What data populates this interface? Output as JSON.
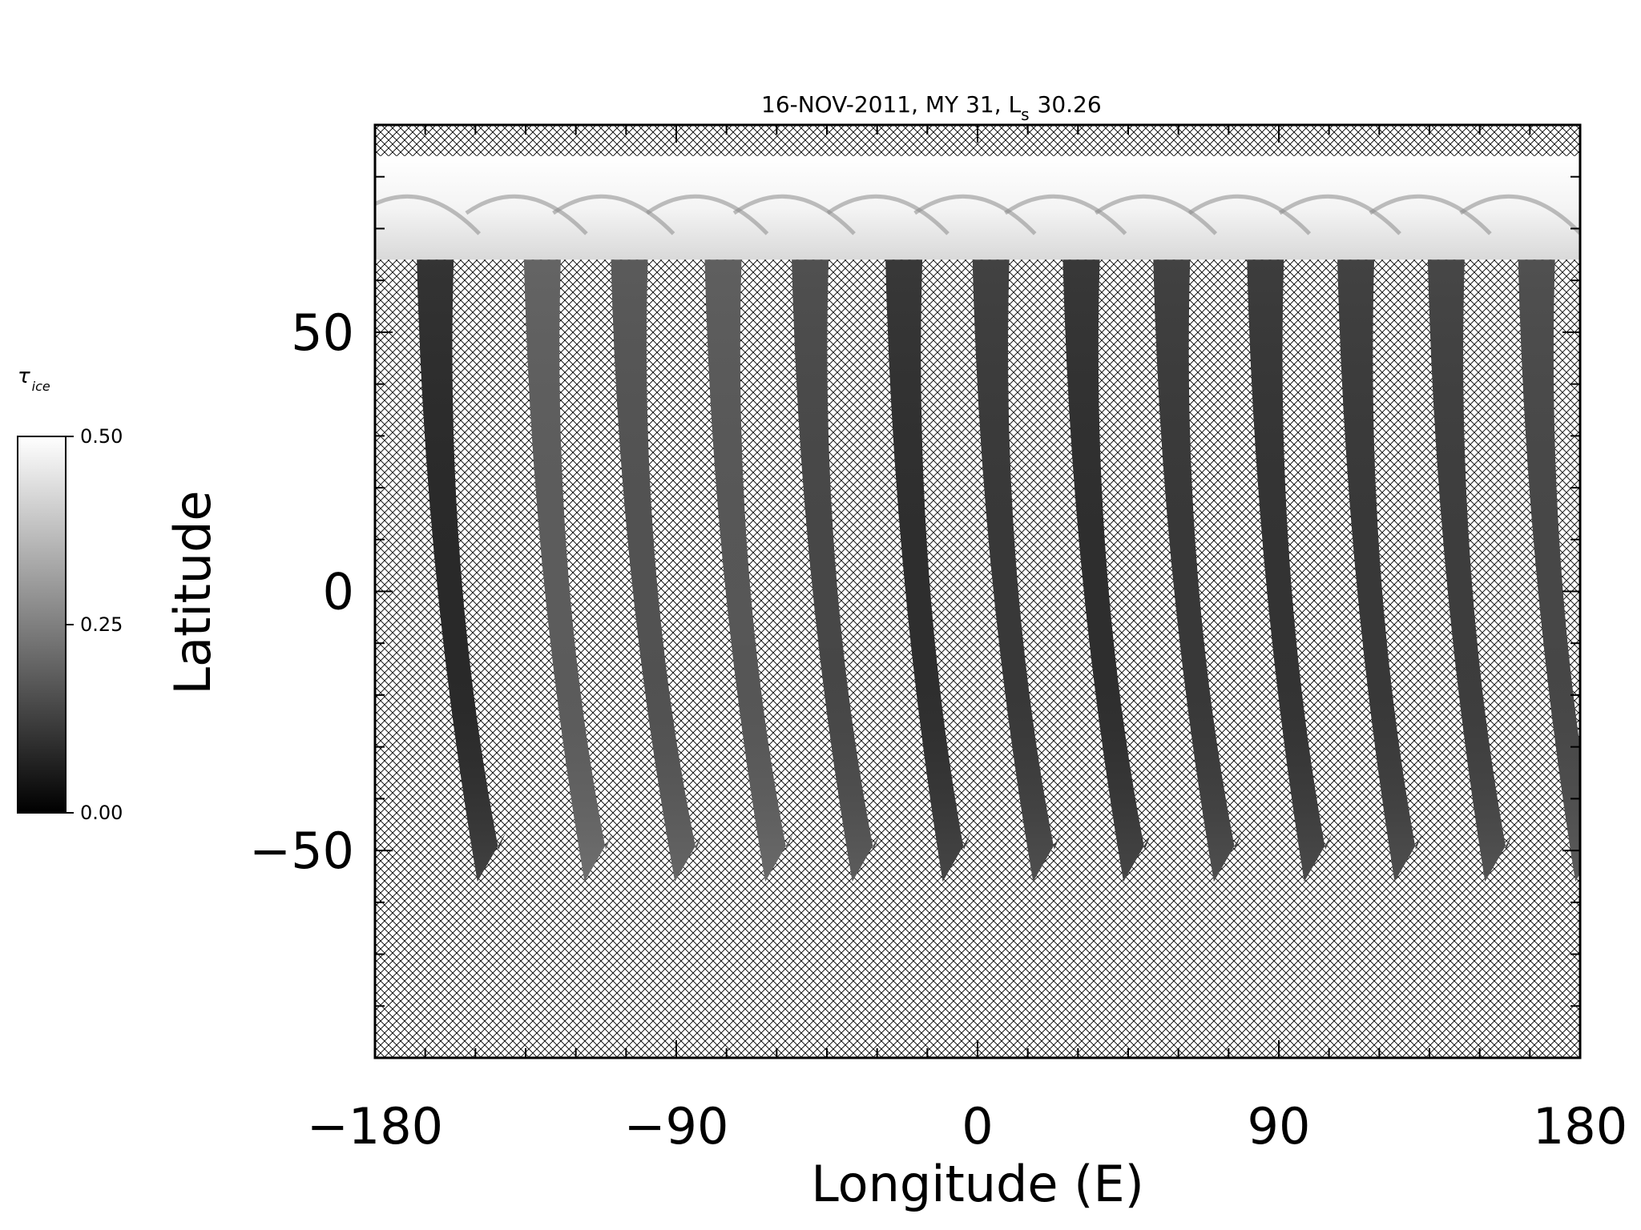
{
  "chart_data": {
    "type": "heatmap",
    "title": "16-NOV-2011, MY 31,  L",
    "title_subscript": "s",
    "title_value": "30.26",
    "xlabel": "Longitude (E)",
    "ylabel": "Latitude",
    "xlim": [
      -180,
      180
    ],
    "ylim": [
      -90,
      90
    ],
    "x_ticks": [
      -180,
      -90,
      0,
      90,
      180
    ],
    "x_tick_labels": [
      "−180",
      "−90",
      "0",
      "90",
      "180"
    ],
    "y_ticks": [
      -50,
      0,
      50
    ],
    "y_tick_labels": [
      "−50",
      "0",
      "50"
    ],
    "grid": false,
    "no_data_fill": "crosshatch",
    "colorbar": {
      "label": "τ",
      "label_subscript": "ice",
      "min": 0.0,
      "max": 0.5,
      "ticks": [
        0.0,
        0.25,
        0.5
      ],
      "tick_labels": [
        "0.00",
        "0.25",
        "0.50"
      ],
      "colormap": "grayscale",
      "placement": "left"
    },
    "swaths": [
      {
        "lon_south": -145,
        "lon_north": -162,
        "tau": 0.08
      },
      {
        "lon_south": -113,
        "lon_north": -130,
        "tau": 0.18
      },
      {
        "lon_south": -86,
        "lon_north": -104,
        "tau": 0.16
      },
      {
        "lon_south": -59,
        "lon_north": -76,
        "tau": 0.17
      },
      {
        "lon_south": -33,
        "lon_north": -50,
        "tau": 0.14
      },
      {
        "lon_south": -6,
        "lon_north": -22,
        "tau": 0.09
      },
      {
        "lon_south": 21,
        "lon_north": 4,
        "tau": 0.11
      },
      {
        "lon_south": 48,
        "lon_north": 31,
        "tau": 0.09
      },
      {
        "lon_south": 75,
        "lon_north": 58,
        "tau": 0.11
      },
      {
        "lon_south": 102,
        "lon_north": 86,
        "tau": 0.1
      },
      {
        "lon_south": 129,
        "lon_north": 113,
        "tau": 0.11
      },
      {
        "lon_south": 156,
        "lon_north": 140,
        "tau": 0.12
      },
      {
        "lon_south": 183,
        "lon_north": 167,
        "tau": 0.14
      }
    ],
    "swath_lat_range": [
      -56,
      64
    ],
    "polar_cap": {
      "lat_min": 64,
      "lat_max": 84,
      "tau": 0.5
    }
  }
}
